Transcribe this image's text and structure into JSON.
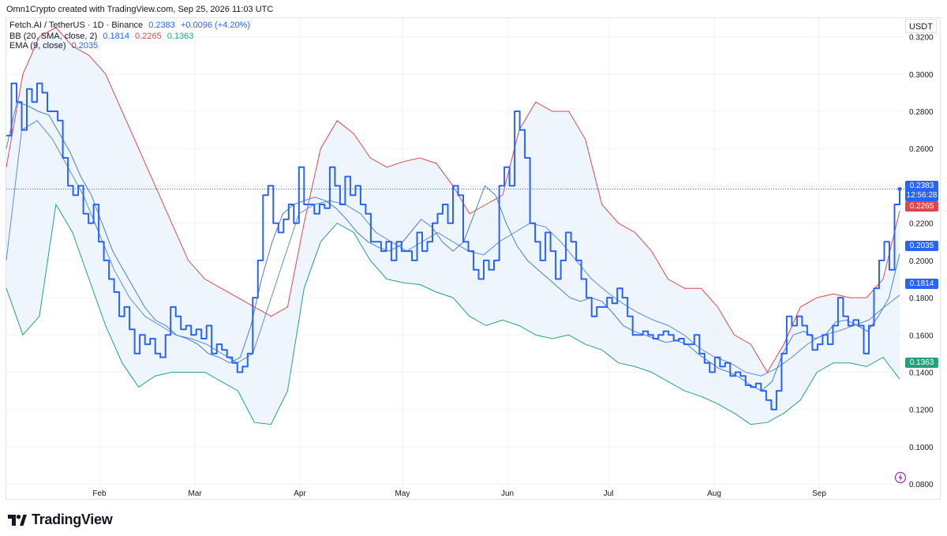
{
  "header": {
    "caption": "Omn1Crypto created with TradingView.com, Sep 25, 2026 11:03 UTC"
  },
  "legend": {
    "symbol": {
      "label": "Fetch.AI / TetherUS · 1D · Binance",
      "value": "0.2383",
      "change": "+0.0096 (+4.20%)"
    },
    "bb": {
      "label": "BB (20, SMA, close, 2)",
      "basis": "0.1814",
      "upper": "0.2265",
      "lower": "0.1363"
    },
    "ema": {
      "label": "EMA (9, close)",
      "value": "0.2035"
    }
  },
  "price_tags": {
    "last": "0.2383",
    "countdown": "12:56:28",
    "upper": "0.2265",
    "ema": "0.2035",
    "basis": "0.1814",
    "lower": "0.1363"
  },
  "colors": {
    "price": "#2962ff",
    "ema": "#4a7fd4",
    "upper": "#e0474c",
    "lower": "#26a17b",
    "basis": "#5b8dd9",
    "fill": "#e8f1fb"
  },
  "footer": {
    "brand": "TradingView"
  },
  "icons": {
    "logo": "tradingview-logo-icon",
    "alert": "lightning-icon"
  },
  "chart_data": {
    "type": "line",
    "unit": "USDT",
    "x_labels": [
      "Feb",
      "Mar",
      "Apr",
      "May",
      "Jun",
      "Jul",
      "Aug",
      "Sep"
    ],
    "y_ticks": [
      0.08,
      0.1,
      0.12,
      0.14,
      0.16,
      0.18,
      0.2,
      0.22,
      0.24,
      0.26,
      0.28,
      0.3,
      0.32
    ],
    "ylim": [
      0.072,
      0.33
    ],
    "grid": true,
    "series": [
      {
        "name": "Fetch.AI / TetherUS",
        "style": "step",
        "values": [
          0.267,
          0.295,
          0.285,
          0.27,
          0.292,
          0.285,
          0.295,
          0.29,
          0.28,
          0.28,
          0.275,
          0.255,
          0.24,
          0.235,
          0.24,
          0.225,
          0.22,
          0.23,
          0.21,
          0.2,
          0.19,
          0.183,
          0.17,
          0.175,
          0.163,
          0.15,
          0.16,
          0.155,
          0.158,
          0.15,
          0.148,
          0.16,
          0.175,
          0.17,
          0.163,
          0.165,
          0.16,
          0.163,
          0.158,
          0.165,
          0.15,
          0.155,
          0.152,
          0.148,
          0.145,
          0.14,
          0.143,
          0.15,
          0.18,
          0.2,
          0.235,
          0.24,
          0.22,
          0.215,
          0.222,
          0.23,
          0.22,
          0.25,
          0.23,
          0.23,
          0.225,
          0.23,
          0.228,
          0.25,
          0.24,
          0.23,
          0.245,
          0.235,
          0.24,
          0.23,
          0.225,
          0.21,
          0.21,
          0.205,
          0.21,
          0.2,
          0.21,
          0.205,
          0.205,
          0.2,
          0.215,
          0.205,
          0.21,
          0.22,
          0.225,
          0.23,
          0.22,
          0.24,
          0.235,
          0.21,
          0.205,
          0.195,
          0.19,
          0.2,
          0.195,
          0.2,
          0.24,
          0.25,
          0.24,
          0.28,
          0.27,
          0.255,
          0.22,
          0.21,
          0.2,
          0.215,
          0.205,
          0.19,
          0.2,
          0.215,
          0.21,
          0.2,
          0.19,
          0.18,
          0.17,
          0.175,
          0.175,
          0.18,
          0.177,
          0.185,
          0.18,
          0.17,
          0.16,
          0.16,
          0.162,
          0.16,
          0.158,
          0.16,
          0.162,
          0.16,
          0.157,
          0.158,
          0.155,
          0.155,
          0.16,
          0.15,
          0.145,
          0.14,
          0.148,
          0.143,
          0.145,
          0.138,
          0.14,
          0.138,
          0.133,
          0.132,
          0.134,
          0.13,
          0.125,
          0.12,
          0.13,
          0.15,
          0.17,
          0.165,
          0.17,
          0.165,
          0.16,
          0.152,
          0.155,
          0.16,
          0.155,
          0.165,
          0.18,
          0.17,
          0.165,
          0.168,
          0.165,
          0.15,
          0.165,
          0.185,
          0.2,
          0.21,
          0.195,
          0.23,
          0.2383
        ]
      },
      {
        "name": "EMA (9, close)",
        "values": [
          0.26,
          0.285,
          0.283,
          0.28,
          0.278,
          0.268,
          0.258,
          0.245,
          0.235,
          0.22,
          0.205,
          0.195,
          0.185,
          0.175,
          0.168,
          0.165,
          0.16,
          0.158,
          0.155,
          0.15,
          0.148,
          0.145,
          0.148,
          0.165,
          0.19,
          0.21,
          0.225,
          0.23,
          0.232,
          0.234,
          0.232,
          0.228,
          0.222,
          0.215,
          0.21,
          0.207,
          0.205,
          0.208,
          0.215,
          0.222,
          0.218,
          0.21,
          0.205,
          0.21,
          0.225,
          0.24,
          0.235,
          0.22,
          0.208,
          0.2,
          0.195,
          0.19,
          0.185,
          0.18,
          0.178,
          0.18,
          0.178,
          0.172,
          0.165,
          0.162,
          0.16,
          0.158,
          0.156,
          0.157,
          0.155,
          0.15,
          0.146,
          0.142,
          0.14,
          0.137,
          0.133,
          0.13,
          0.135,
          0.15,
          0.16,
          0.162,
          0.158,
          0.16,
          0.167,
          0.168,
          0.165,
          0.162,
          0.17,
          0.18,
          0.2035
        ]
      },
      {
        "name": "BB upper",
        "values": [
          0.25,
          0.3,
          0.32,
          0.325,
          0.315,
          0.31,
          0.3,
          0.28,
          0.26,
          0.24,
          0.22,
          0.2,
          0.19,
          0.185,
          0.18,
          0.175,
          0.17,
          0.175,
          0.22,
          0.26,
          0.275,
          0.268,
          0.255,
          0.25,
          0.253,
          0.255,
          0.252,
          0.24,
          0.225,
          0.23,
          0.235,
          0.27,
          0.285,
          0.28,
          0.28,
          0.265,
          0.23,
          0.22,
          0.215,
          0.205,
          0.19,
          0.185,
          0.185,
          0.175,
          0.16,
          0.155,
          0.14,
          0.155,
          0.175,
          0.18,
          0.182,
          0.18,
          0.18,
          0.19,
          0.2265
        ]
      },
      {
        "name": "BB basis",
        "values": [
          0.2,
          0.27,
          0.275,
          0.265,
          0.25,
          0.235,
          0.215,
          0.195,
          0.18,
          0.17,
          0.165,
          0.16,
          0.158,
          0.155,
          0.15,
          0.145,
          0.15,
          0.175,
          0.2,
          0.225,
          0.23,
          0.232,
          0.23,
          0.225,
          0.215,
          0.21,
          0.205,
          0.21,
          0.215,
          0.21,
          0.205,
          0.203,
          0.21,
          0.215,
          0.22,
          0.218,
          0.21,
          0.2,
          0.19,
          0.183,
          0.177,
          0.172,
          0.168,
          0.165,
          0.16,
          0.153,
          0.148,
          0.145,
          0.14,
          0.138,
          0.142,
          0.148,
          0.155,
          0.16,
          0.162,
          0.165,
          0.168,
          0.175,
          0.1814
        ]
      },
      {
        "name": "BB lower",
        "values": [
          0.185,
          0.16,
          0.17,
          0.23,
          0.215,
          0.19,
          0.165,
          0.145,
          0.132,
          0.138,
          0.14,
          0.14,
          0.14,
          0.135,
          0.13,
          0.113,
          0.112,
          0.13,
          0.185,
          0.21,
          0.22,
          0.215,
          0.2,
          0.19,
          0.188,
          0.187,
          0.183,
          0.18,
          0.17,
          0.165,
          0.168,
          0.165,
          0.16,
          0.158,
          0.16,
          0.155,
          0.152,
          0.145,
          0.143,
          0.14,
          0.135,
          0.13,
          0.127,
          0.123,
          0.118,
          0.112,
          0.113,
          0.118,
          0.125,
          0.14,
          0.145,
          0.145,
          0.143,
          0.148,
          0.1363
        ]
      }
    ]
  }
}
